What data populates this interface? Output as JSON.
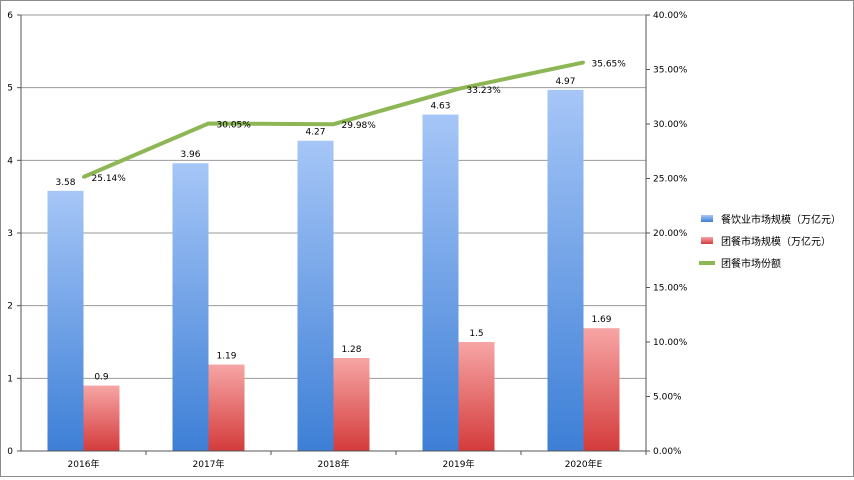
{
  "chart_data": {
    "type": "bar",
    "categories": [
      "2016年",
      "2017年",
      "2018年",
      "2019年",
      "2020年E"
    ],
    "series": [
      {
        "name": "餐饮业市场规模（万亿元）",
        "kind": "bar",
        "axis": "left",
        "color": "#5b93e0",
        "values": [
          3.58,
          3.96,
          4.27,
          4.63,
          4.97
        ],
        "labels": [
          "3.58",
          "3.96",
          "4.27",
          "4.63",
          "4.97"
        ]
      },
      {
        "name": "团餐市场规模（万亿元）",
        "kind": "bar",
        "axis": "left",
        "color": "#e05a5a",
        "values": [
          0.9,
          1.19,
          1.28,
          1.5,
          1.69
        ],
        "labels": [
          "0.9",
          "1.19",
          "1.28",
          "1.5",
          "1.69"
        ]
      },
      {
        "name": "团餐市场份额",
        "kind": "line",
        "axis": "right",
        "color": "#8db654",
        "values": [
          25.14,
          30.05,
          29.98,
          33.23,
          35.65
        ],
        "labels": [
          "25.14%",
          "30.05%",
          "29.98%",
          "33.23%",
          "35.65%"
        ]
      }
    ],
    "y_left": {
      "range": [
        0,
        6
      ],
      "ticks": [
        "0",
        "1",
        "2",
        "3",
        "4",
        "5",
        "6"
      ]
    },
    "y_right": {
      "range": [
        0,
        40
      ],
      "ticks": [
        "0.00%",
        "5.00%",
        "10.00%",
        "15.00%",
        "20.00%",
        "25.00%",
        "30.00%",
        "35.00%",
        "40.00%"
      ]
    },
    "grid": true,
    "legend": "right"
  }
}
